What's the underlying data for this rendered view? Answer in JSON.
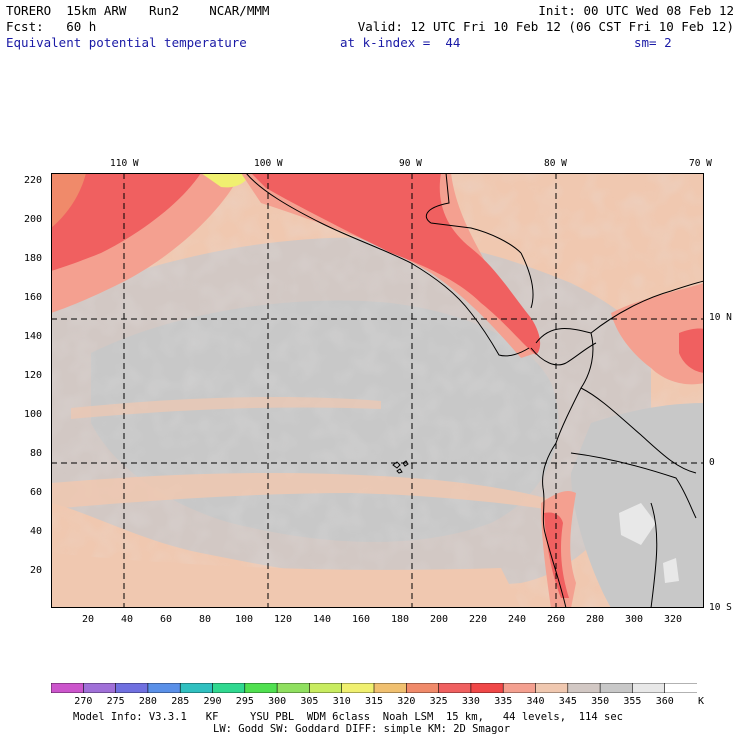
{
  "header": {
    "line1_left": "TORERO  15km ARW   Run2    NCAR/MMM",
    "line1_right": "Init: 00 UTC Wed 08 Feb 12",
    "line2_left": "Fcst:   60 h",
    "line2_right": "Valid: 12 UTC Fri 10 Feb 12 (06 CST Fri 10 Feb 12)",
    "field": "Equivalent potential temperature",
    "level": "at k-index =  44",
    "smooth": "sm= 2"
  },
  "map": {
    "lon_labels": [
      "110 W",
      "100 W",
      "90 W",
      "80 W",
      "70 W"
    ],
    "lat_labels": [
      "10 N",
      "0",
      "10 S"
    ],
    "y_ticks": [
      "220",
      "200",
      "180",
      "160",
      "140",
      "120",
      "100",
      "80",
      "60",
      "40",
      "20"
    ],
    "x_ticks": [
      "20",
      "40",
      "60",
      "80",
      "100",
      "120",
      "140",
      "160",
      "180",
      "200",
      "220",
      "240",
      "260",
      "280",
      "300",
      "320"
    ]
  },
  "colorbar": {
    "labels": [
      "270",
      "275",
      "280",
      "285",
      "290",
      "295",
      "300",
      "305",
      "310",
      "315",
      "320",
      "325",
      "330",
      "335",
      "340",
      "345",
      "350",
      "355",
      "360"
    ],
    "unit": "K",
    "colors": [
      "#cc55cc",
      "#a070d8",
      "#7070e0",
      "#5a90e8",
      "#30c0c0",
      "#30d890",
      "#50e050",
      "#90e060",
      "#c8ec60",
      "#f0f070",
      "#f0c070",
      "#f08a6a",
      "#f06060",
      "#f04848",
      "#f4a090",
      "#f0c8b0",
      "#d2c8c4",
      "#c8c8c8",
      "#e8e8e8",
      "#ffffff"
    ]
  },
  "footer": {
    "line1": "Model Info: V3.3.1   KF     YSU PBL  WDM 6class  Noah LSM  15 km,   44 levels,  114 sec",
    "line2": "LW: Godd SW: Goddard DIFF: simple KM: 2D Smagor"
  }
}
